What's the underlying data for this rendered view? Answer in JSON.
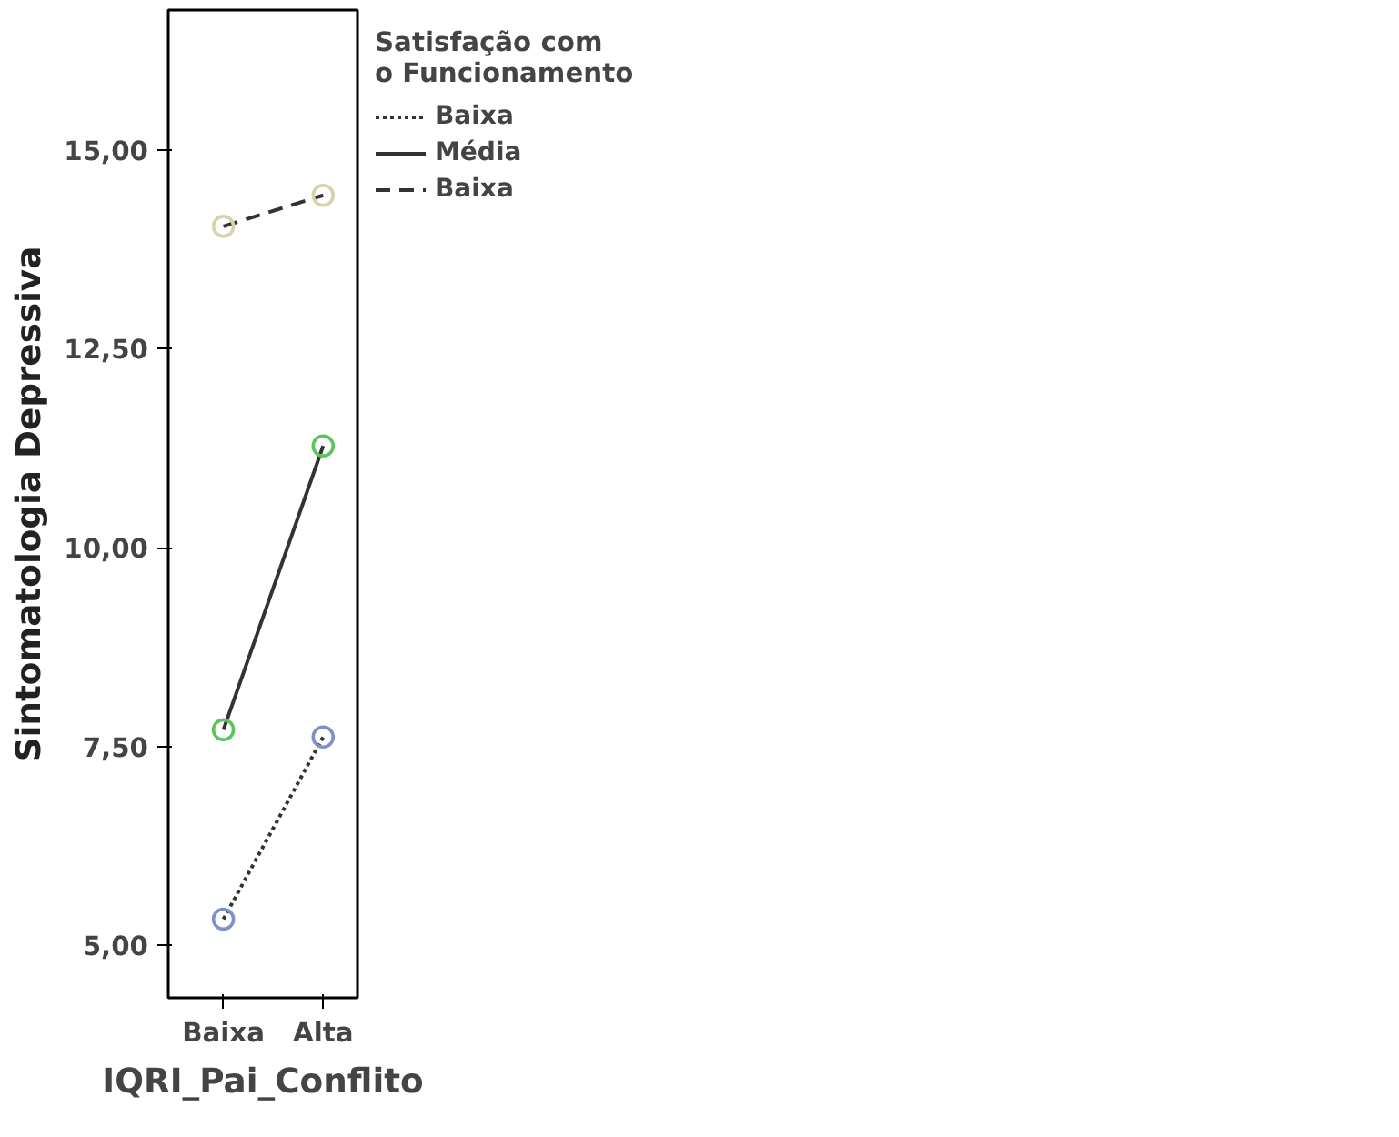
{
  "chart_data": {
    "type": "line",
    "xlabel": "IQRI_Pai_Conflito",
    "ylabel": "Sintomatologia Depressiva",
    "legend_title": "Satisfação com o Funcionamento",
    "categories": [
      "Baixa",
      "Alta"
    ],
    "series": [
      {
        "name": "Baixa",
        "color": "#7f8fc8",
        "line_style": "dotted",
        "values": [
          5.33,
          7.62
        ]
      },
      {
        "name": "Média",
        "color": "#5cc45c",
        "line_style": "solid",
        "values": [
          7.71,
          11.28
        ]
      },
      {
        "name": "Baixa",
        "color": "#d8d2aa",
        "line_style": "dashed",
        "values": [
          14.04,
          14.43
        ]
      }
    ],
    "ylim": [
      4.34,
      16.76
    ],
    "yticks": [
      {
        "value": 5,
        "label": "5,00"
      },
      {
        "value": 7.5,
        "label": "7,50"
      },
      {
        "value": 10,
        "label": "10,00"
      },
      {
        "value": 12.5,
        "label": "12,50"
      },
      {
        "value": 15,
        "label": "15,00"
      }
    ],
    "marker": "circle",
    "grid": false,
    "legend": "right"
  }
}
